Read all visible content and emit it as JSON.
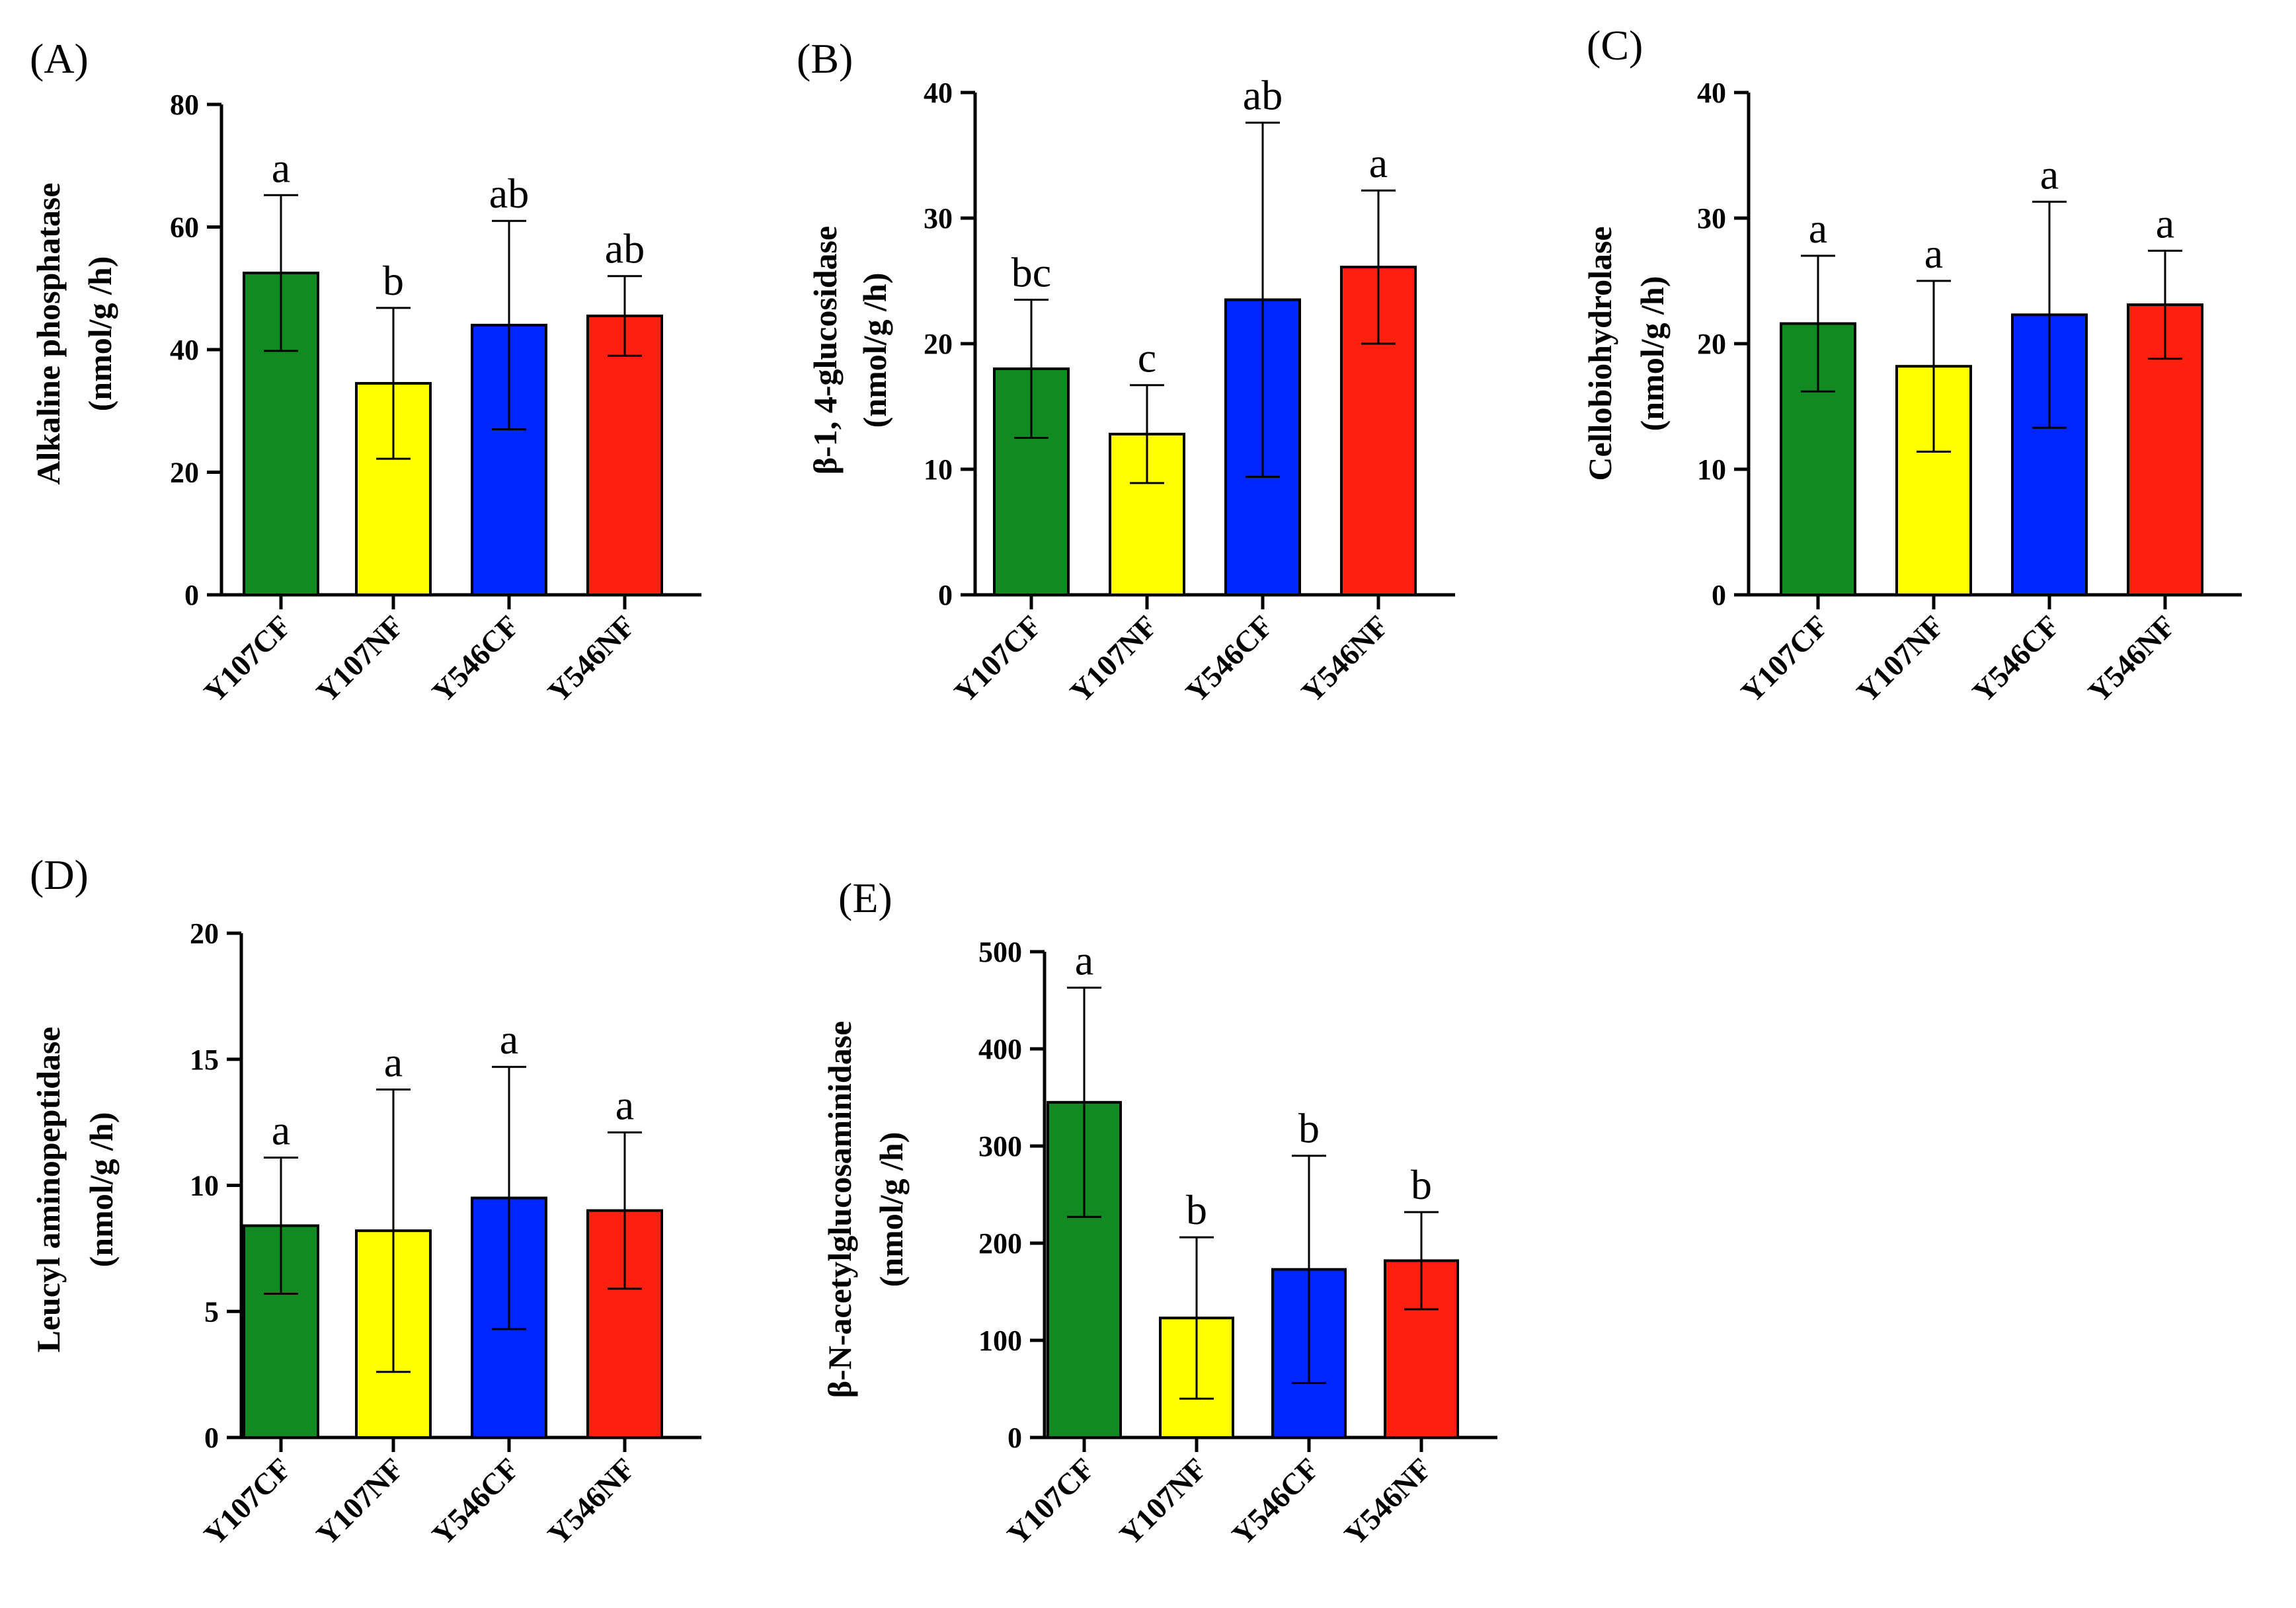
{
  "figure": {
    "panels": [
      {
        "label": "(A)",
        "ylabel_line1": "Alkaline phosphatase",
        "ylabel_line2": "(nmol/g /h)"
      },
      {
        "label": "(B)",
        "ylabel_line1": "β-1, 4-glucosidase",
        "ylabel_line2": "(nmol/g /h)"
      },
      {
        "label": "(C)",
        "ylabel_line1": "Cellobiohydrolase",
        "ylabel_line2": "(nmol/g /h)"
      },
      {
        "label": "(D)",
        "ylabel_line1": "Leucyl aminopeptidase",
        "ylabel_line2": "(nmol/g /h)"
      },
      {
        "label": "(E)",
        "ylabel_line1": "β-N-acetylglucosaminidase",
        "ylabel_line2": "(nmol/g /h)"
      }
    ]
  },
  "chart_data": [
    {
      "type": "bar",
      "title": "(A)",
      "ylabel": "Alkaline phosphatase (nmol/g /h)",
      "categories": [
        "Y107CF",
        "Y107NF",
        "Y546CF",
        "Y546NF"
      ],
      "values": [
        52.5,
        34.5,
        44,
        45.5
      ],
      "errors": [
        12.7,
        12.3,
        17,
        6.5
      ],
      "letters": [
        "a",
        "b",
        "ab",
        "ab"
      ],
      "colors": [
        "#118a22",
        "#ffff00",
        "#0026ff",
        "#ff2010"
      ],
      "ylim": [
        0,
        80
      ],
      "yticks": [
        0,
        20,
        40,
        60,
        80
      ]
    },
    {
      "type": "bar",
      "title": "(B)",
      "ylabel": "β-1, 4-glucosidase (nmol/g /h)",
      "categories": [
        "Y107CF",
        "Y107NF",
        "Y546CF",
        "Y546NF"
      ],
      "values": [
        18,
        12.8,
        23.5,
        26.1
      ],
      "errors": [
        5.5,
        3.9,
        14.1,
        6.1
      ],
      "letters": [
        "bc",
        "c",
        "ab",
        "a"
      ],
      "colors": [
        "#118a22",
        "#ffff00",
        "#0026ff",
        "#ff2010"
      ],
      "ylim": [
        0,
        40
      ],
      "yticks": [
        0,
        10,
        20,
        30,
        40
      ]
    },
    {
      "type": "bar",
      "title": "(C)",
      "ylabel": "Cellobiohydrolase (nmol/g /h)",
      "categories": [
        "Y107CF",
        "Y107NF",
        "Y546CF",
        "Y546NF"
      ],
      "values": [
        21.6,
        18.2,
        22.3,
        23.1
      ],
      "errors": [
        5.4,
        6.8,
        9,
        4.3
      ],
      "letters": [
        "a",
        "a",
        "a",
        "a"
      ],
      "colors": [
        "#118a22",
        "#ffff00",
        "#0026ff",
        "#ff2010"
      ],
      "ylim": [
        0,
        40
      ],
      "yticks": [
        0,
        10,
        20,
        30,
        40
      ]
    },
    {
      "type": "bar",
      "title": "(D)",
      "ylabel": "Leucyl aminopeptidase (nmol/g /h)",
      "categories": [
        "Y107CF",
        "Y107NF",
        "Y546CF",
        "Y546NF"
      ],
      "values": [
        8.4,
        8.2,
        9.5,
        9
      ],
      "errors": [
        2.7,
        5.6,
        5.2,
        3.1
      ],
      "letters": [
        "a",
        "a",
        "a",
        "a"
      ],
      "colors": [
        "#118a22",
        "#ffff00",
        "#0026ff",
        "#ff2010"
      ],
      "ylim": [
        0,
        20
      ],
      "yticks": [
        0,
        5,
        10,
        15,
        20
      ]
    },
    {
      "type": "bar",
      "title": "(E)",
      "ylabel": "β-N-acetylglucosaminidase (nmol/g /h)",
      "categories": [
        "Y107CF",
        "Y107NF",
        "Y546CF",
        "Y546NF"
      ],
      "values": [
        345,
        123,
        173,
        182
      ],
      "errors": [
        118,
        83,
        117,
        50
      ],
      "letters": [
        "a",
        "b",
        "b",
        "b"
      ],
      "colors": [
        "#118a22",
        "#ffff00",
        "#0026ff",
        "#ff2010"
      ],
      "ylim": [
        0,
        500
      ],
      "yticks": [
        0,
        100,
        200,
        300,
        400,
        500
      ]
    }
  ]
}
